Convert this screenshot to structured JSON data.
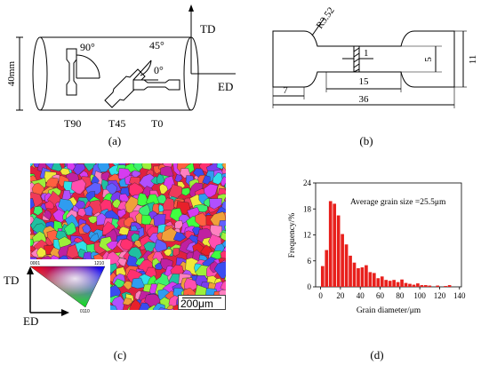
{
  "figure": {
    "captions": {
      "a": "(a)",
      "b": "(b)",
      "c": "(c)",
      "d": "(d)"
    }
  },
  "panel_a": {
    "diameter_label": "40mm",
    "axis_td": "TD",
    "axis_ed": "ED",
    "angle_90": "90°",
    "angle_45": "45°",
    "angle_0": "0°",
    "sample_t90": "T90",
    "sample_t45": "T45",
    "sample_t0": "T0"
  },
  "panel_b": {
    "radius_label": "R3.52",
    "dim_1": "1",
    "dim_5": "5",
    "dim_11": "11",
    "dim_15": "15",
    "dim_7": "7",
    "dim_36": "36"
  },
  "panel_c": {
    "scale_bar": "200μm",
    "axis_td": "TD",
    "axis_ed": "ED",
    "ipf_0001": "0001",
    "ipf_1210": "1210",
    "ipf_0110": "0110"
  },
  "chart_data": {
    "type": "bar",
    "xlabel": "Grain diameter/μm",
    "ylabel": "Frequency/%",
    "annotation": "Average grain size =25.5μm",
    "xlim": [
      -5,
      142
    ],
    "ylim": [
      0,
      24
    ],
    "xticks": [
      0,
      20,
      40,
      60,
      80,
      100,
      120,
      140
    ],
    "yticks": [
      0,
      6,
      12,
      18,
      24
    ],
    "bar_width": 4,
    "color": "#e8201c",
    "x": [
      2,
      6,
      10,
      14,
      18,
      22,
      26,
      30,
      34,
      38,
      42,
      46,
      50,
      54,
      58,
      62,
      66,
      70,
      74,
      78,
      82,
      86,
      90,
      94,
      98,
      102,
      106,
      110,
      114,
      118,
      122,
      126,
      130
    ],
    "values": [
      4.8,
      8.5,
      19.8,
      19.2,
      16.5,
      12.2,
      9.8,
      7.2,
      5.6,
      4.3,
      4.5,
      5.0,
      3.4,
      3.2,
      2.0,
      2.4,
      1.6,
      1.4,
      1.6,
      1.1,
      1.7,
      0.9,
      0.7,
      0.5,
      0.8,
      0.4,
      0.4,
      0.3,
      0.0,
      0.3,
      0.0,
      0.2,
      0.4
    ]
  }
}
